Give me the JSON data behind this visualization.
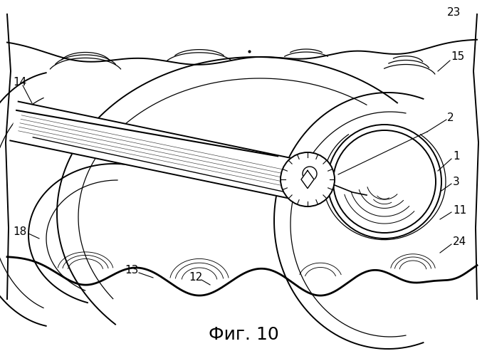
{
  "title": "Фиг. 10",
  "title_fontsize": 18,
  "background_color": "#ffffff",
  "line_color": "#000000",
  "fig_width": 6.84,
  "fig_height": 5.0,
  "dpi": 100
}
